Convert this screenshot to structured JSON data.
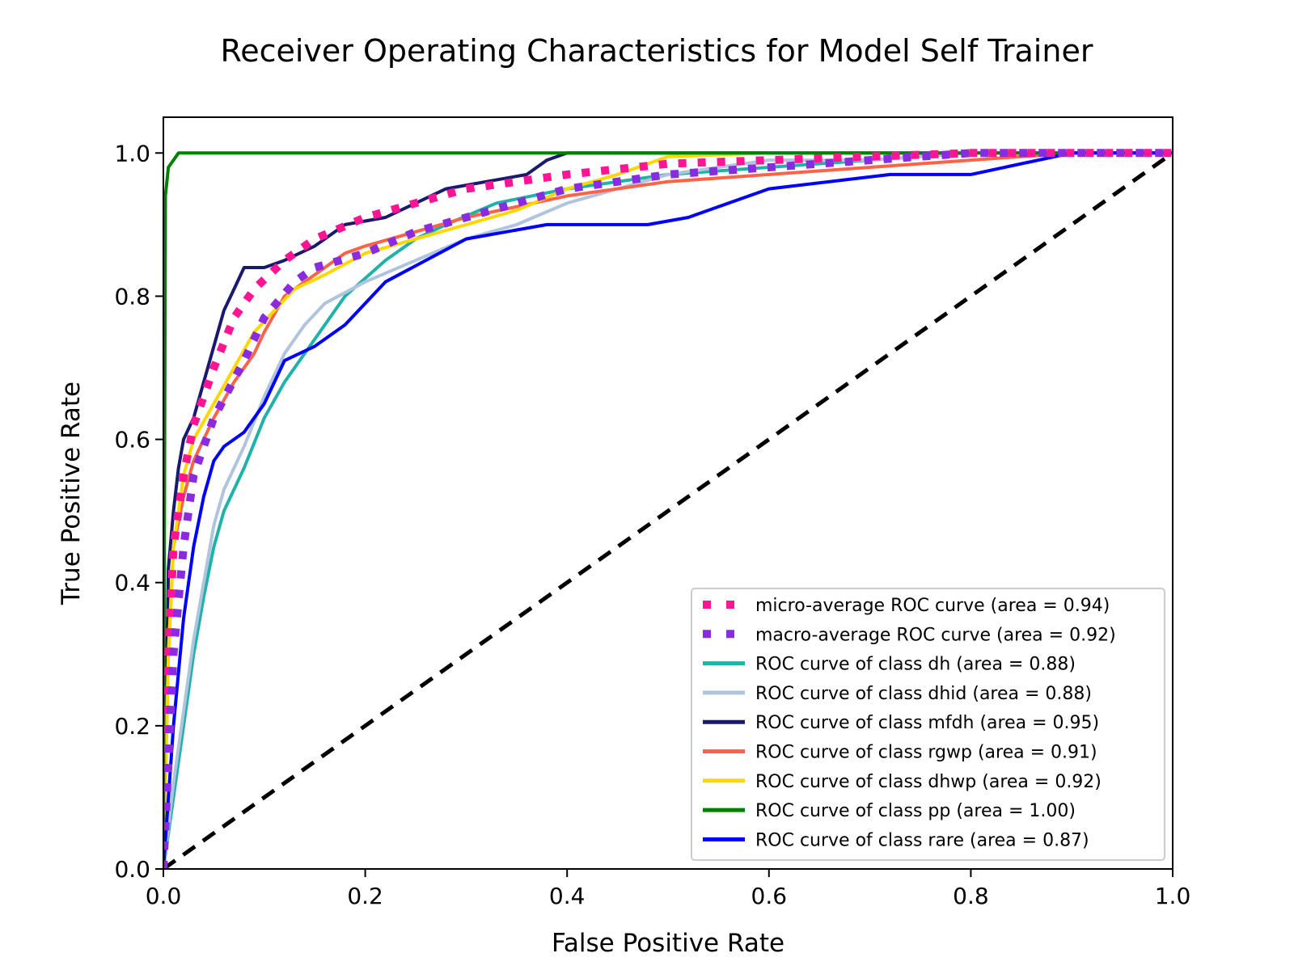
{
  "chart_data": {
    "type": "line",
    "title": "Receiver Operating Characteristics for Model Self Trainer",
    "xlabel": "False Positive Rate",
    "ylabel": "True Positive Rate",
    "xlim": [
      0.0,
      1.0
    ],
    "ylim": [
      0.0,
      1.05
    ],
    "xticks": [
      "0.0",
      "0.2",
      "0.4",
      "0.6",
      "0.8",
      "1.0"
    ],
    "yticks": [
      "0.0",
      "0.2",
      "0.4",
      "0.6",
      "0.8",
      "1.0"
    ],
    "grid": false,
    "legend_position": "lower-right",
    "chance_line": {
      "x": [
        0,
        1
      ],
      "y": [
        0,
        1
      ],
      "color": "#000000",
      "style": "dashed"
    },
    "series": [
      {
        "name": "micro-average ROC curve (area = 0.94)",
        "color": "#ff1493",
        "style": "dotted",
        "x": [
          0.0,
          0.005,
          0.01,
          0.02,
          0.03,
          0.05,
          0.07,
          0.09,
          0.12,
          0.15,
          0.2,
          0.25,
          0.3,
          0.4,
          0.5,
          0.6,
          0.8,
          1.0
        ],
        "y": [
          0.0,
          0.3,
          0.45,
          0.55,
          0.62,
          0.7,
          0.77,
          0.81,
          0.85,
          0.88,
          0.91,
          0.93,
          0.95,
          0.97,
          0.985,
          0.99,
          1.0,
          1.0
        ]
      },
      {
        "name": "macro-average ROC curve (area = 0.92)",
        "color": "#8a2be2",
        "style": "dotted",
        "x": [
          0.0,
          0.01,
          0.02,
          0.03,
          0.05,
          0.08,
          0.1,
          0.13,
          0.15,
          0.2,
          0.25,
          0.3,
          0.4,
          0.5,
          0.6,
          0.7,
          0.8,
          0.9,
          1.0
        ],
        "y": [
          0.0,
          0.3,
          0.45,
          0.55,
          0.63,
          0.71,
          0.77,
          0.82,
          0.84,
          0.86,
          0.89,
          0.91,
          0.95,
          0.97,
          0.98,
          0.99,
          1.0,
          1.0,
          1.0
        ]
      },
      {
        "name": "ROC curve of class dh (area = 0.88)",
        "color": "#20b2aa",
        "style": "solid",
        "x": [
          0.0,
          0.01,
          0.02,
          0.03,
          0.04,
          0.05,
          0.06,
          0.08,
          0.1,
          0.12,
          0.15,
          0.18,
          0.22,
          0.25,
          0.28,
          0.33,
          0.4,
          0.5,
          0.6,
          0.7,
          0.8,
          0.9,
          1.0
        ],
        "y": [
          0.0,
          0.1,
          0.2,
          0.3,
          0.38,
          0.45,
          0.5,
          0.56,
          0.63,
          0.68,
          0.74,
          0.8,
          0.85,
          0.88,
          0.9,
          0.93,
          0.95,
          0.97,
          0.98,
          0.99,
          1.0,
          1.0,
          1.0
        ]
      },
      {
        "name": "ROC curve of class dhid (area = 0.88)",
        "color": "#b0c4de",
        "style": "solid",
        "x": [
          0.0,
          0.01,
          0.02,
          0.03,
          0.04,
          0.05,
          0.06,
          0.08,
          0.1,
          0.12,
          0.14,
          0.16,
          0.2,
          0.25,
          0.3,
          0.35,
          0.4,
          0.5,
          0.6,
          0.7,
          0.8,
          0.9,
          1.0
        ],
        "y": [
          0.0,
          0.12,
          0.22,
          0.32,
          0.4,
          0.48,
          0.53,
          0.59,
          0.66,
          0.72,
          0.76,
          0.79,
          0.82,
          0.85,
          0.88,
          0.9,
          0.93,
          0.97,
          0.99,
          0.99,
          1.0,
          1.0,
          1.0
        ]
      },
      {
        "name": "ROC curve of class mfdh (area = 0.95)",
        "color": "#191970",
        "style": "solid",
        "x": [
          0.0,
          0.005,
          0.01,
          0.015,
          0.02,
          0.03,
          0.04,
          0.05,
          0.06,
          0.07,
          0.08,
          0.1,
          0.12,
          0.15,
          0.18,
          0.22,
          0.25,
          0.28,
          0.32,
          0.36,
          0.38,
          0.4,
          0.42,
          1.0
        ],
        "y": [
          0.0,
          0.42,
          0.5,
          0.56,
          0.6,
          0.63,
          0.68,
          0.73,
          0.78,
          0.81,
          0.84,
          0.84,
          0.85,
          0.87,
          0.9,
          0.91,
          0.93,
          0.95,
          0.96,
          0.97,
          0.99,
          1.0,
          1.0,
          1.0
        ]
      },
      {
        "name": "ROC curve of class rgwp (area = 0.91)",
        "color": "#ff6347",
        "style": "solid",
        "x": [
          0.0,
          0.005,
          0.01,
          0.02,
          0.03,
          0.05,
          0.07,
          0.09,
          0.1,
          0.12,
          0.15,
          0.18,
          0.2,
          0.25,
          0.3,
          0.4,
          0.5,
          0.6,
          0.7,
          0.8,
          0.9,
          1.0
        ],
        "y": [
          0.0,
          0.3,
          0.45,
          0.52,
          0.57,
          0.63,
          0.68,
          0.72,
          0.75,
          0.8,
          0.83,
          0.86,
          0.87,
          0.89,
          0.91,
          0.94,
          0.96,
          0.97,
          0.98,
          0.99,
          1.0,
          1.0
        ]
      },
      {
        "name": "ROC curve of class dhwp (area = 0.92)",
        "color": "#ffd700",
        "style": "solid",
        "x": [
          0.0,
          0.005,
          0.01,
          0.02,
          0.03,
          0.05,
          0.07,
          0.09,
          0.11,
          0.13,
          0.16,
          0.2,
          0.25,
          0.3,
          0.35,
          0.4,
          0.45,
          0.5,
          0.6,
          0.8,
          1.0
        ],
        "y": [
          0.0,
          0.3,
          0.45,
          0.55,
          0.6,
          0.65,
          0.7,
          0.75,
          0.78,
          0.81,
          0.83,
          0.86,
          0.88,
          0.9,
          0.92,
          0.95,
          0.97,
          0.995,
          1.0,
          1.0,
          1.0
        ]
      },
      {
        "name": "ROC curve of class pp (area = 1.00)",
        "color": "#008000",
        "style": "solid",
        "x": [
          0.0,
          0.002,
          0.005,
          0.01,
          0.015,
          1.0
        ],
        "y": [
          0.0,
          0.94,
          0.98,
          0.99,
          1.0,
          1.0
        ]
      },
      {
        "name": "ROC curve of class rare (area = 0.87)",
        "color": "#0000ff",
        "style": "solid",
        "x": [
          0.0,
          0.01,
          0.02,
          0.03,
          0.04,
          0.05,
          0.06,
          0.08,
          0.1,
          0.12,
          0.15,
          0.18,
          0.22,
          0.26,
          0.3,
          0.38,
          0.48,
          0.52,
          0.6,
          0.72,
          0.8,
          0.9,
          1.0
        ],
        "y": [
          0.0,
          0.2,
          0.35,
          0.45,
          0.52,
          0.57,
          0.59,
          0.61,
          0.65,
          0.71,
          0.73,
          0.76,
          0.82,
          0.85,
          0.88,
          0.9,
          0.9,
          0.91,
          0.95,
          0.97,
          0.97,
          1.0,
          1.0
        ]
      }
    ]
  }
}
